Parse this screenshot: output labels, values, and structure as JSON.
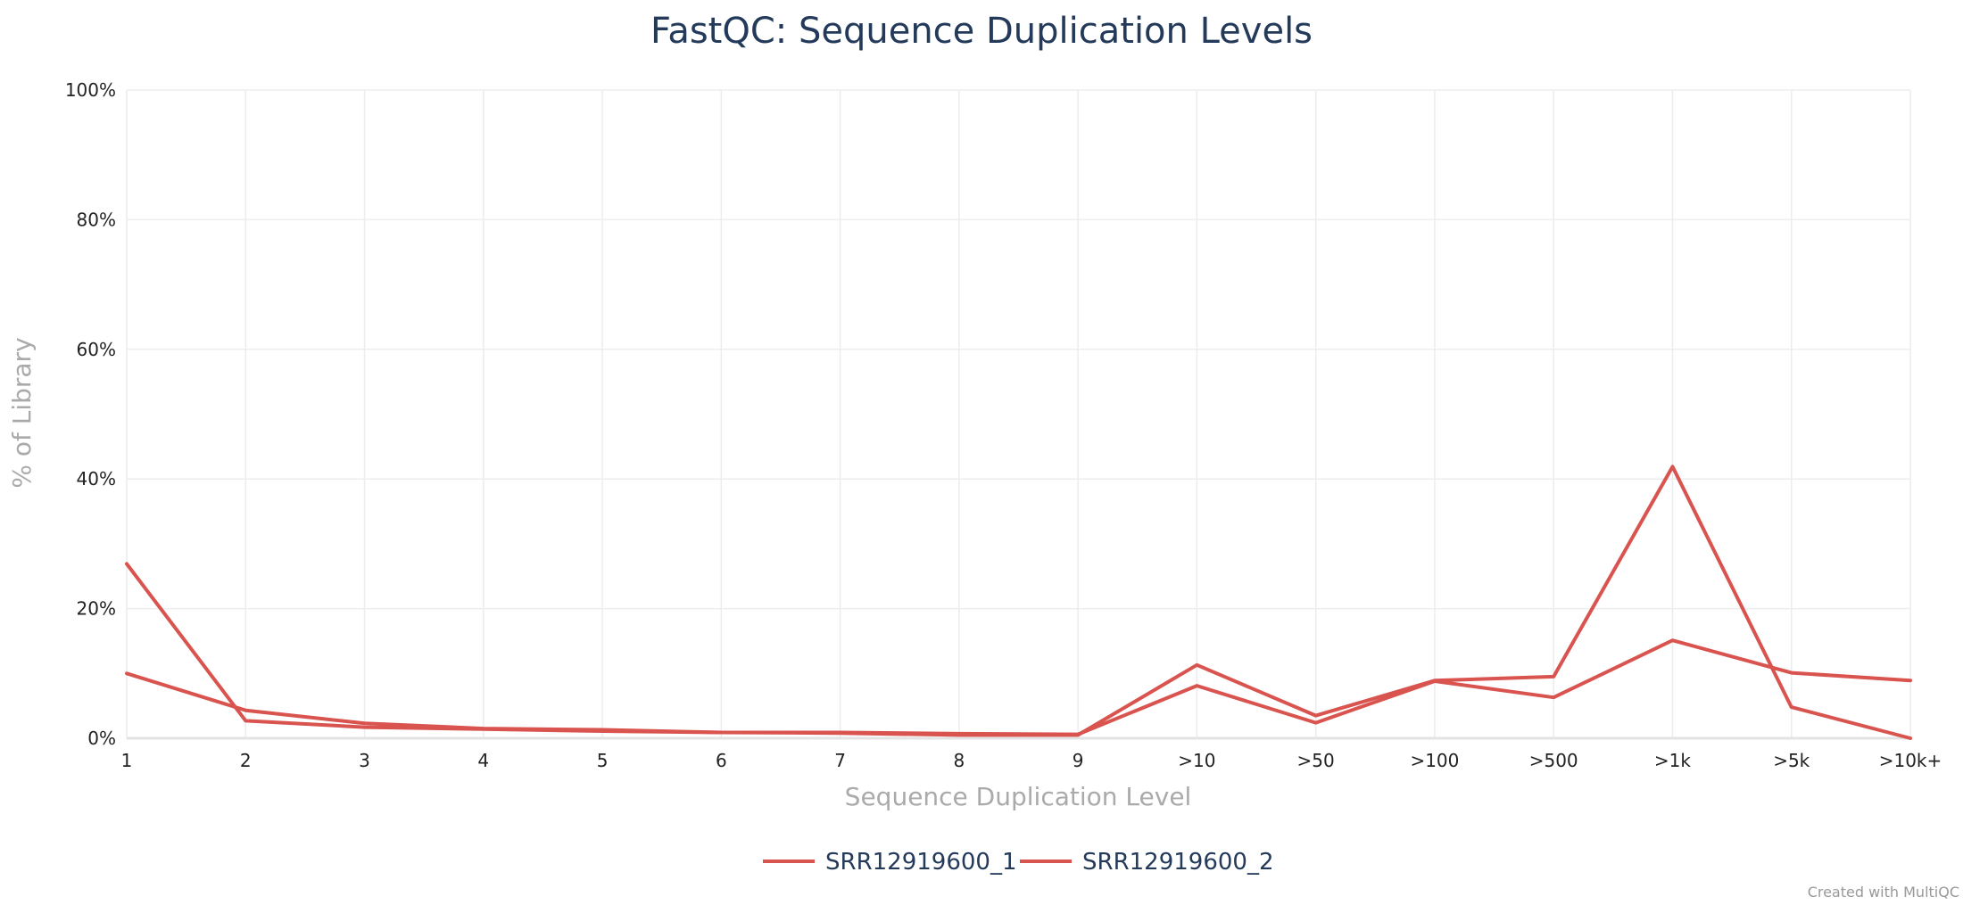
{
  "chart_data": {
    "type": "line",
    "title": "FastQC: Sequence Duplication Levels",
    "xlabel": "Sequence Duplication Level",
    "ylabel": "% of Library",
    "categories": [
      "1",
      "2",
      "3",
      "4",
      "5",
      "6",
      "7",
      "8",
      "9",
      ">10",
      ">50",
      ">100",
      ">500",
      ">1k",
      ">5k",
      ">10k+"
    ],
    "ylim": [
      0,
      100
    ],
    "yticks": [
      0,
      20,
      40,
      60,
      80,
      100
    ],
    "ytick_labels": [
      "0%",
      "20%",
      "40%",
      "60%",
      "80%",
      "100%"
    ],
    "grid": true,
    "legend_position": "bottom-center",
    "series": [
      {
        "name": "SRR12919600_1",
        "color": "#d9534f",
        "values": [
          26.9,
          2.7,
          1.7,
          1.4,
          1.1,
          0.9,
          0.8,
          0.5,
          0.5,
          11.3,
          3.5,
          8.9,
          9.5,
          41.9,
          4.8,
          0.0
        ]
      },
      {
        "name": "SRR12919600_2",
        "color": "#d9534f",
        "values": [
          10.0,
          4.3,
          2.3,
          1.5,
          1.3,
          0.9,
          0.9,
          0.7,
          0.6,
          8.1,
          2.4,
          8.8,
          6.3,
          15.1,
          10.1,
          8.9
        ]
      }
    ]
  },
  "credit": "Created with MultiQC"
}
